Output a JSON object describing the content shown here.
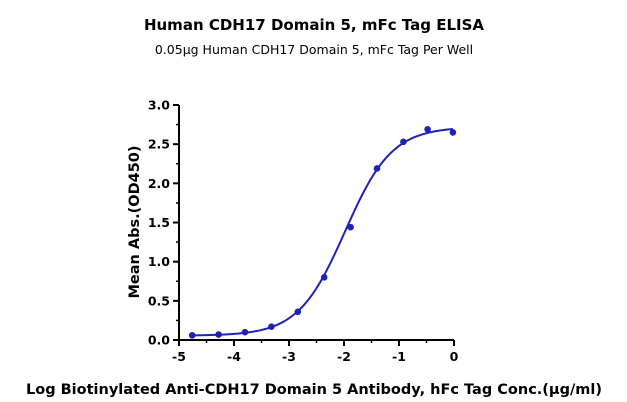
{
  "chart_data": {
    "type": "line",
    "title": "Human CDH17 Domain 5, mFc Tag ELISA",
    "subtitle": "0.05μg Human CDH17 Domain 5, mFc Tag Per Well",
    "xlabel": "Log Biotinylated Anti-CDH17 Domain 5 Antibody, hFc Tag Conc.(μg/ml)",
    "ylabel": "Mean Abs.(OD450)",
    "xlim": [
      -5,
      0
    ],
    "ylim": [
      0,
      3.0
    ],
    "x_ticks": [
      "-5",
      "-4",
      "-3",
      "-2",
      "-1",
      "0"
    ],
    "y_ticks": [
      "0.0",
      "0.5",
      "1.0",
      "1.5",
      "2.0",
      "2.5",
      "3.0"
    ],
    "grid": false,
    "colors": {
      "series": "#1f22b4",
      "axis": "#000000"
    },
    "series": [
      {
        "x": [
          -4.76,
          -4.28,
          -3.8,
          -3.32,
          -2.84,
          -2.36,
          -1.88,
          -1.4,
          -0.92,
          -0.48,
          -0.02
        ],
        "y": [
          0.06,
          0.07,
          0.1,
          0.17,
          0.36,
          0.8,
          1.44,
          2.19,
          2.53,
          2.69,
          2.65
        ]
      }
    ],
    "fit": {
      "bottom": 0.055,
      "top": 2.72,
      "log_ec50": -1.98,
      "hill_slope": 1.02
    }
  }
}
